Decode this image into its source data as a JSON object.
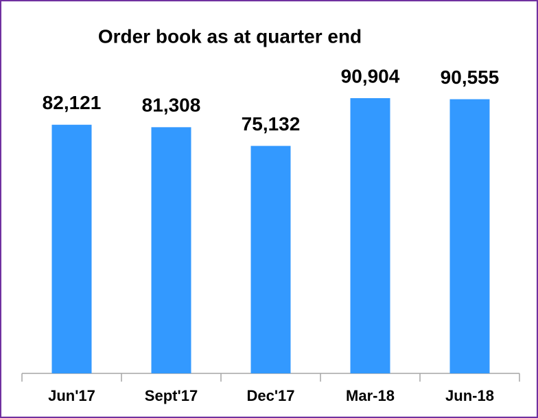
{
  "chart_data": {
    "type": "bar",
    "title": "Order book  as at quarter end",
    "categories": [
      "Jun'17",
      "Sept'17",
      "Dec'17",
      "Mar-18",
      "Jun-18"
    ],
    "values": [
      82121,
      81308,
      75132,
      90904,
      90555
    ],
    "value_labels": [
      "82,121",
      "81,308",
      "75,132",
      "90,904",
      "90,555"
    ],
    "color": "#3399ff"
  }
}
